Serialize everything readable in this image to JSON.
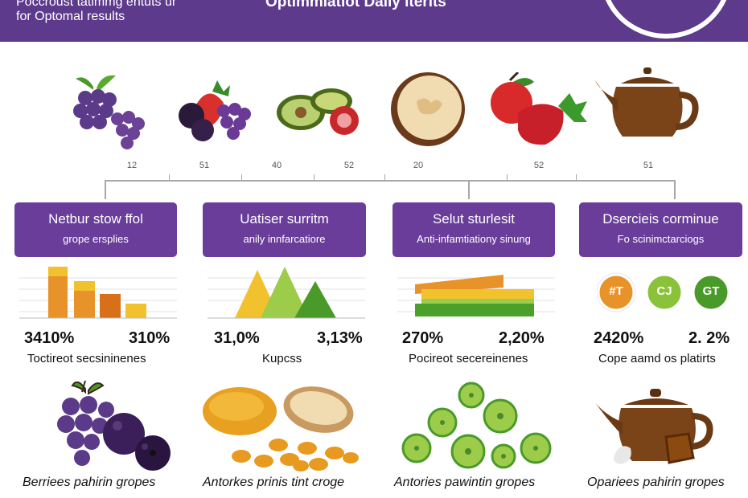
{
  "header": {
    "subtitle_line1": "Poccroust tatimmg entuts ur",
    "subtitle_line2": "for Optomal results",
    "title": "Optimmiatiot Daily iterits"
  },
  "foods": [
    "grapes-icon",
    "mixed-berries-icon",
    "avocado-icon",
    "bread-slice-icon",
    "apples-icon",
    "teapot-icon"
  ],
  "timeline": {
    "ticks": [
      "12",
      "51",
      "40",
      "52",
      "20",
      "52",
      "51"
    ]
  },
  "cards": [
    {
      "title": "Netbur stow ffol",
      "subtitle": "grope ersplies",
      "left_value": "3410%",
      "right_value": "310%",
      "caption": "Toctireot secsininenes",
      "bottom_label": "Berriees pahirin gropes"
    },
    {
      "title": "Uatiser surritm",
      "subtitle": "anily innfarcatiore",
      "left_value": "31,0%",
      "right_value": "3,13%",
      "caption": "Kupcss",
      "bottom_label": "Antorkes prinis tint croge"
    },
    {
      "title": "Selut sturlesit",
      "subtitle": "Anti-infamtiationy sinung",
      "left_value": "270%",
      "right_value": "2,20%",
      "caption": "Pocireot secereinenes",
      "bottom_label": "Antories pawintin gropes"
    },
    {
      "title": "Dsercieis corminue",
      "subtitle": "Fo scinimctarciogs",
      "left_value": "2420%",
      "right_value": "2. 2%",
      "caption": "Cope aamd os platirts",
      "bottom_label": "Opariees pahirin gropes"
    }
  ],
  "badges": [
    "#T",
    "CJ",
    "GT"
  ],
  "colors": {
    "purple": "#6a3d9a",
    "header": "#5e3a8c",
    "orange": "#e8922a",
    "yellow": "#f2c12e",
    "green": "#5aa02c",
    "lightgreen": "#9ccc4a"
  }
}
